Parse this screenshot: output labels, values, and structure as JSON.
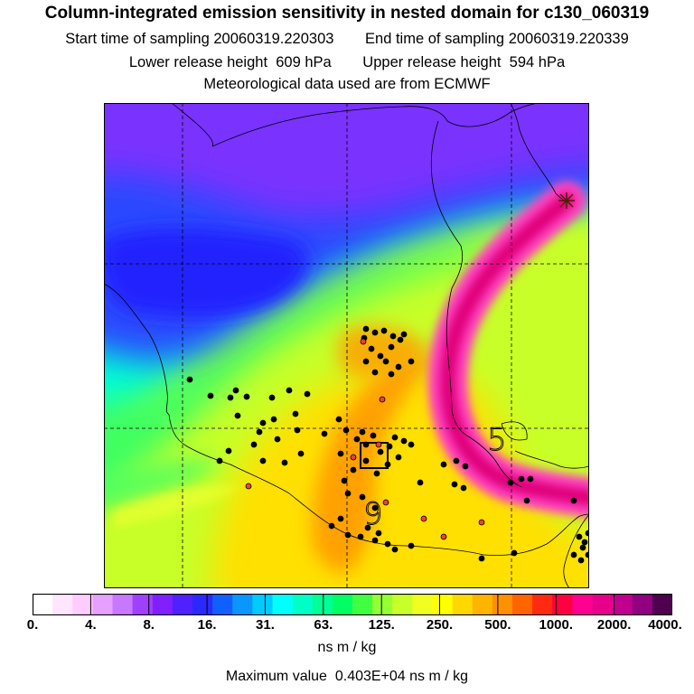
{
  "header": {
    "title": "Column-integrated emission sensitivity in nested domain for c130_060319",
    "start_label": "Start time of sampling",
    "start_value": "20060319.220303",
    "end_label": "End time of sampling",
    "end_value": "20060319.220339",
    "lower_label": "Lower release height",
    "lower_value": "609 hPa",
    "upper_label": "Upper release height",
    "upper_value": "594 hPa",
    "met_line": "Meteorological data used are from ECMWF"
  },
  "map": {
    "contour_labels": [
      "5",
      "9"
    ],
    "marker_color_black": "#000000",
    "marker_color_red": "#e8403a"
  },
  "colorbar": {
    "colors": [
      "#ffffff",
      "#ffe6ff",
      "#ffccff",
      "#e6a0ff",
      "#c878ff",
      "#a040ff",
      "#8020ff",
      "#5020ff",
      "#2a2aff",
      "#1060ff",
      "#0a96ff",
      "#00caff",
      "#00ffff",
      "#00ffc8",
      "#00ff96",
      "#00ff64",
      "#40ff40",
      "#96ff32",
      "#c8ff28",
      "#f0ff20",
      "#ffff00",
      "#ffd800",
      "#ffb400",
      "#ff9000",
      "#ff6400",
      "#ff2a10",
      "#ff0040",
      "#ff0090",
      "#e8008c",
      "#c00090",
      "#900080",
      "#500050"
    ],
    "tick_labels": [
      "0.",
      "4.",
      "8.",
      "16.",
      "31.",
      "63.",
      "125.",
      "250.",
      "500.",
      "1000.",
      "2000.",
      "4000."
    ],
    "units": "ns m / kg"
  },
  "footer": {
    "max_label": "Maximum value",
    "max_value": "0.403E+04",
    "max_units": "ns m / kg"
  }
}
